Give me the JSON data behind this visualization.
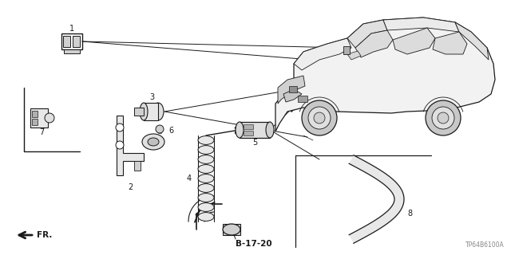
{
  "bg_color": "#ffffff",
  "line_color": "#1a1a1a",
  "diagram_code": "TP64B6100A",
  "ref_label": "B-17-20",
  "direction_label": "FR."
}
